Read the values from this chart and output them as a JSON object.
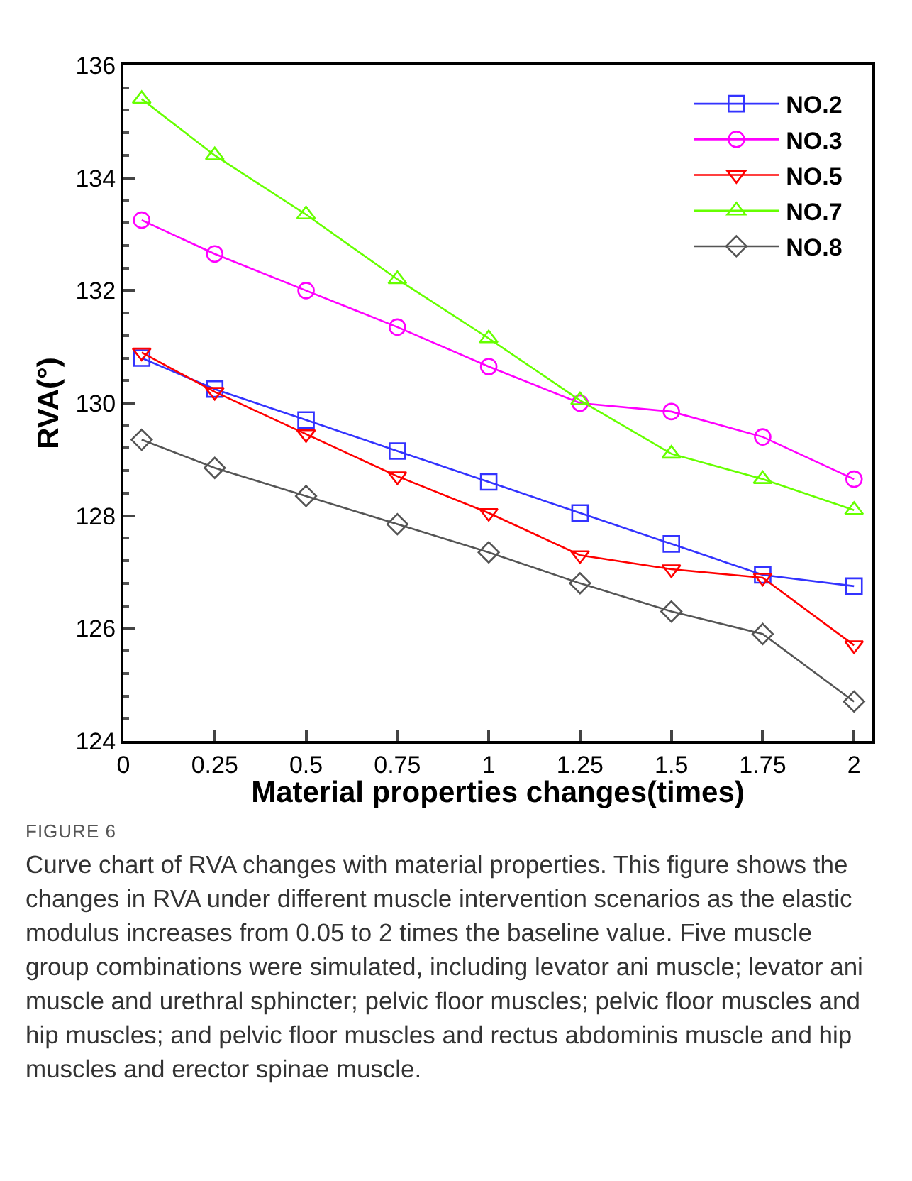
{
  "chart_data": {
    "type": "line",
    "xlabel": "Material properties changes(times)",
    "ylabel": "RVA(°)",
    "x": [
      0.05,
      0.25,
      0.5,
      0.75,
      1,
      1.25,
      1.5,
      1.75,
      2
    ],
    "xlim": [
      0,
      2.05
    ],
    "xticks": [
      0,
      0.25,
      0.5,
      0.75,
      1,
      1.25,
      1.5,
      1.75,
      2
    ],
    "ylim": [
      124,
      136
    ],
    "yticks": [
      124,
      126,
      128,
      130,
      132,
      134,
      136
    ],
    "grid": false,
    "legend": "top right",
    "line_style": "solid",
    "series": [
      {
        "name": "NO.2",
        "color": "#3333ff",
        "marker": "square",
        "values": [
          130.8,
          130.25,
          129.7,
          129.15,
          128.6,
          128.05,
          127.5,
          126.95,
          126.75
        ]
      },
      {
        "name": "NO.3",
        "color": "#ff00ff",
        "marker": "circle",
        "values": [
          133.25,
          132.65,
          132.0,
          131.35,
          130.65,
          130.0,
          129.85,
          129.4,
          128.65
        ]
      },
      {
        "name": "NO.5",
        "color": "#ff0000",
        "marker": "triangle-down",
        "values": [
          130.9,
          130.2,
          129.45,
          128.7,
          128.05,
          127.3,
          127.05,
          126.9,
          125.7
        ]
      },
      {
        "name": "NO.7",
        "color": "#66ff00",
        "marker": "triangle",
        "values": [
          135.4,
          134.4,
          133.35,
          132.2,
          131.15,
          130.05,
          129.1,
          128.65,
          128.1
        ]
      },
      {
        "name": "NO.8",
        "color": "#555555",
        "marker": "diamond",
        "values": [
          129.35,
          128.85,
          128.35,
          127.85,
          127.35,
          126.8,
          126.3,
          125.9,
          124.7
        ]
      }
    ],
    "annotations": [
      "FIGURE 6",
      "Curve chart of RVA changes with material properties. This figure shows the changes in RVA under different muscle intervention scenarios as the elastic modulus increases from 0.05 to 2 times the baseline value. Five muscle group combinations were simulated, including levator ani muscle; levator ani muscle and urethral sphincter; pelvic floor muscles; pelvic floor muscles and hip muscles; and pelvic floor muscles and rectus abdominis muscle and hip muscles and erector spinae muscle."
    ]
  }
}
